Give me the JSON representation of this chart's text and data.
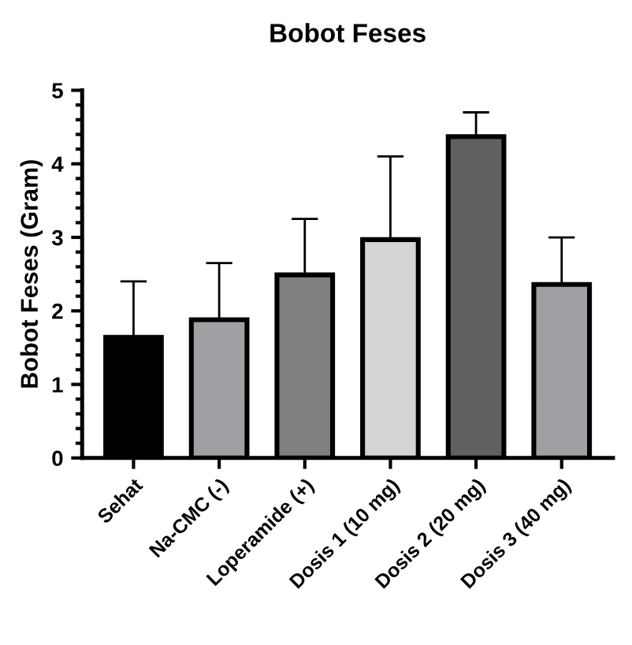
{
  "chart_data": {
    "type": "bar",
    "title": "Bobot Feses",
    "ylabel": "Bobot Feses (Gram)",
    "categories": [
      "Sehat",
      "Na-CMC (-)",
      "Loperamide (+)",
      "Dosis 1 (10 mg)",
      "Dosis 2 (20 mg)",
      "Dosis 3 (40 mg)"
    ],
    "values": [
      1.64,
      1.88,
      2.49,
      2.97,
      4.37,
      2.36
    ],
    "errors": [
      0.76,
      0.77,
      0.76,
      1.13,
      0.33,
      0.64
    ],
    "colors": [
      "#000000",
      "#a0a0a4",
      "#808080",
      "#d4d4d4",
      "#606060",
      "#a0a0a4"
    ],
    "ylim": [
      0,
      5
    ],
    "yticks": [
      0,
      1,
      2,
      3,
      4,
      5
    ],
    "grid": false,
    "legend": false
  }
}
